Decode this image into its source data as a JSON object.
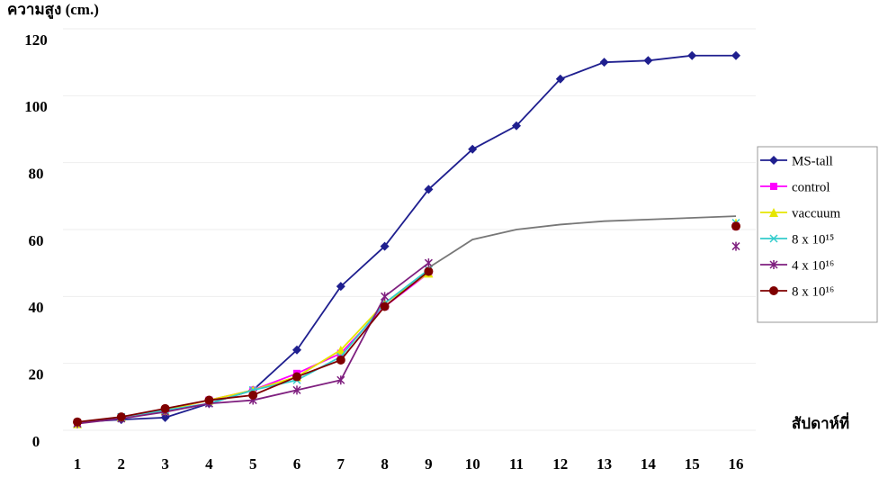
{
  "chart_data": {
    "type": "line",
    "ylabel": "ความสูง (cm.)",
    "xlabel": "สัปดาห์ที่",
    "categories": [
      "1",
      "2",
      "3",
      "4",
      "5",
      "6",
      "7",
      "8",
      "9",
      "10",
      "11",
      "12",
      "13",
      "14",
      "15",
      "16"
    ],
    "ylim": [
      0,
      120
    ],
    "yticks": [
      0,
      20,
      40,
      60,
      80,
      100,
      120
    ],
    "grid": true,
    "series": [
      {
        "name": "MS-tall",
        "color": "#1f1f8f",
        "marker": "diamond",
        "values": [
          2.4,
          3.2,
          3.8,
          8,
          12,
          24,
          43,
          55,
          72,
          84,
          91,
          105,
          110,
          110.5,
          112,
          112
        ]
      },
      {
        "name": "control",
        "color": "#ff00ff",
        "marker": "square",
        "values": [
          2,
          4,
          6,
          9,
          12,
          17,
          23,
          37,
          47,
          null,
          null,
          null,
          null,
          null,
          null,
          61
        ]
      },
      {
        "name": "vaccuum",
        "color": "#e6e600",
        "marker": "triangle",
        "values": [
          2,
          4,
          6,
          9,
          12,
          16,
          24,
          38,
          47,
          null,
          null,
          null,
          null,
          null,
          null,
          62
        ]
      },
      {
        "name": "8 x 10¹⁵",
        "color": "#33cccc",
        "marker": "x",
        "values": [
          2,
          4,
          6,
          8,
          12,
          15,
          22,
          38,
          48,
          null,
          null,
          null,
          null,
          null,
          null,
          62
        ]
      },
      {
        "name": "4 x 10¹⁶",
        "color": "#7f1f7f",
        "marker": "star",
        "values": [
          2,
          3.5,
          5.5,
          8,
          9,
          12,
          15,
          40,
          50,
          null,
          null,
          null,
          null,
          null,
          null,
          55
        ]
      },
      {
        "name": "8 x 10¹⁶",
        "color": "#7f0000",
        "marker": "circle",
        "values": [
          2.5,
          4,
          6.5,
          9,
          10.5,
          16,
          21,
          37,
          47.5,
          null,
          null,
          null,
          null,
          null,
          null,
          61
        ]
      },
      {
        "color": "#777777",
        "marker": "none",
        "values": [
          null,
          null,
          null,
          null,
          null,
          null,
          null,
          null,
          48.6,
          57,
          60,
          61.5,
          62.5,
          63,
          63.5,
          64
        ]
      }
    ]
  }
}
